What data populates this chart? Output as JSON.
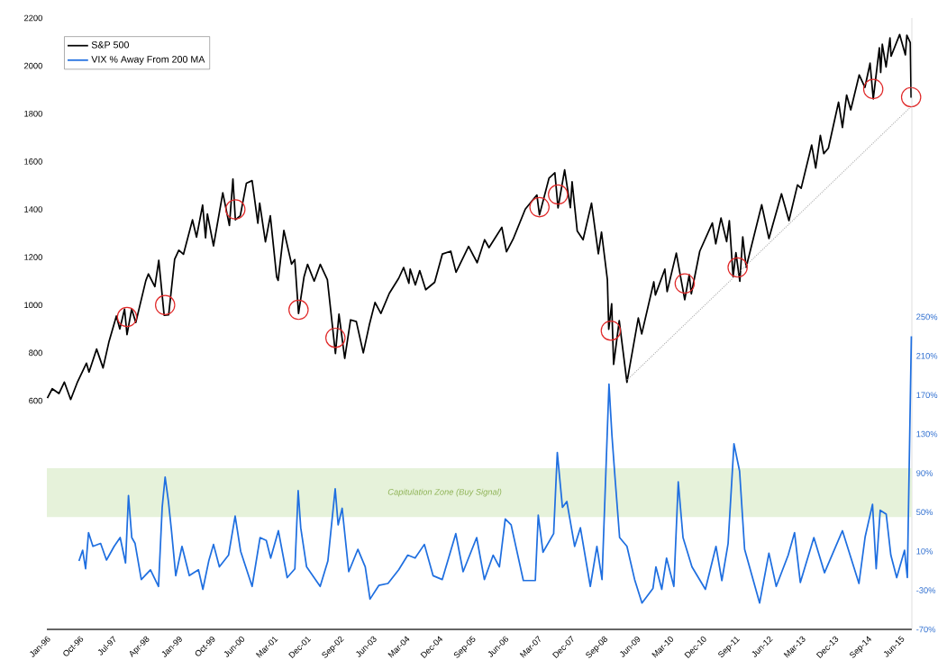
{
  "chart_data": {
    "type": "line",
    "xlim": [
      "1996-01",
      "2015-09"
    ],
    "xticks": [
      {
        "value": "1996-01",
        "label": "Jan-96"
      },
      {
        "value": "1996-10",
        "label": "Oct-96"
      },
      {
        "value": "1997-07",
        "label": "Jul-97"
      },
      {
        "value": "1998-04",
        "label": "Apr-98"
      },
      {
        "value": "1999-01",
        "label": "Jan-99"
      },
      {
        "value": "1999-10",
        "label": "Oct-99"
      },
      {
        "value": "2000-06",
        "label": "Jun-00"
      },
      {
        "value": "2001-03",
        "label": "Mar-01"
      },
      {
        "value": "2001-12",
        "label": "Dec-01"
      },
      {
        "value": "2002-09",
        "label": "Sep-02"
      },
      {
        "value": "2003-06",
        "label": "Jun-03"
      },
      {
        "value": "2004-03",
        "label": "Mar-04"
      },
      {
        "value": "2004-12",
        "label": "Dec-04"
      },
      {
        "value": "2005-09",
        "label": "Sep-05"
      },
      {
        "value": "2006-06",
        "label": "Jun-06"
      },
      {
        "value": "2007-03",
        "label": "Mar-07"
      },
      {
        "value": "2007-12",
        "label": "Dec-07"
      },
      {
        "value": "2008-09",
        "label": "Sep-08"
      },
      {
        "value": "2009-06",
        "label": "Jun-09"
      },
      {
        "value": "2010-03",
        "label": "Mar-10"
      },
      {
        "value": "2010-12",
        "label": "Dec-10"
      },
      {
        "value": "2011-09",
        "label": "Sep-11"
      },
      {
        "value": "2012-06",
        "label": "Jun-12"
      },
      {
        "value": "2013-03",
        "label": "Mar-13"
      },
      {
        "value": "2013-12",
        "label": "Dec-13"
      },
      {
        "value": "2014-09",
        "label": "Sep-14"
      },
      {
        "value": "2015-06",
        "label": "Jun-15"
      }
    ],
    "ylim": [
      -356,
      2200
    ],
    "yticks": [
      600,
      800,
      1000,
      1200,
      1400,
      1600,
      1800,
      2000,
      2200
    ],
    "y2lim": [
      -70,
      556
    ],
    "y2ticks": [
      {
        "value": 250,
        "label": "250%"
      },
      {
        "value": 210,
        "label": "210%"
      },
      {
        "value": 170,
        "label": "170%"
      },
      {
        "value": 130,
        "label": "130%"
      },
      {
        "value": 90,
        "label": "90%"
      },
      {
        "value": 50,
        "label": "50%"
      },
      {
        "value": 10,
        "label": "10%"
      },
      {
        "value": -30,
        "label": "-30%"
      },
      {
        "value": -70,
        "label": "-70%"
      }
    ],
    "legend": "top left",
    "bands": [
      {
        "axis": "y2",
        "from": 45,
        "to": 95,
        "label": "Capitulation Zone (Buy Signal)",
        "color": "#e6f2da"
      }
    ],
    "series": [
      {
        "name": "S&P 500",
        "color": "#000000",
        "x": [
          "1996-01-05",
          "1996-02-15",
          "1996-04-10",
          "1996-05-24",
          "1996-07-16",
          "1996-09-13",
          "1996-11-25",
          "1996-12-16",
          "1997-02-18",
          "1997-04-11",
          "1997-05-30",
          "1997-07-30",
          "1997-08-28",
          "1997-10-07",
          "1997-10-27",
          "1997-12-05",
          "1998-01-09",
          "1998-03-31",
          "1998-04-22",
          "1998-06-15",
          "1998-07-17",
          "1998-08-31",
          "1998-10-08",
          "1998-11-27",
          "1998-12-31",
          "1999-02-09",
          "1999-04-23",
          "1999-05-26",
          "1999-07-16",
          "1999-08-10",
          "1999-08-25",
          "1999-10-15",
          "1999-12-31",
          "2000-02-25",
          "2000-03-24",
          "2000-04-14",
          "2000-05-24",
          "2000-07-14",
          "2000-09-01",
          "2000-10-18",
          "2000-11-03",
          "2000-12-20",
          "2001-01-30",
          "2001-03-22",
          "2001-04-04",
          "2001-05-21",
          "2001-07-24",
          "2001-08-20",
          "2001-09-21",
          "2001-11-06",
          "2001-12-05",
          "2002-01-29",
          "2002-03-19",
          "2002-05-17",
          "2002-07-23",
          "2002-08-22",
          "2002-10-09",
          "2002-11-27",
          "2003-01-14",
          "2003-03-11",
          "2003-04-30",
          "2003-06-17",
          "2003-08-05",
          "2003-10-14",
          "2003-12-31",
          "2004-02-11",
          "2004-03-24",
          "2004-04-05",
          "2004-05-17",
          "2004-06-23",
          "2004-08-12",
          "2004-10-25",
          "2004-12-28",
          "2005-03-07",
          "2005-04-20",
          "2005-08-03",
          "2005-10-13",
          "2005-12-14",
          "2006-01-20",
          "2006-05-05",
          "2006-06-13",
          "2006-08-07",
          "2006-11-17",
          "2007-02-22",
          "2007-03-13",
          "2007-05-31",
          "2007-07-19",
          "2007-08-15",
          "2007-10-09",
          "2007-11-26",
          "2007-12-10",
          "2008-01-22",
          "2008-03-10",
          "2008-05-19",
          "2008-07-15",
          "2008-08-11",
          "2008-09-29",
          "2008-10-10",
          "2008-11-04",
          "2008-11-20",
          "2009-01-06",
          "2009-03-09",
          "2009-06-12",
          "2009-07-10",
          "2009-10-19",
          "2009-11-02",
          "2010-01-19",
          "2010-02-08",
          "2010-04-23",
          "2010-07-02",
          "2010-08-09",
          "2010-08-26",
          "2010-11-05",
          "2011-02-18",
          "2011-03-16",
          "2011-04-29",
          "2011-06-15",
          "2011-07-07",
          "2011-08-08",
          "2011-08-31",
          "2011-10-03",
          "2011-10-27",
          "2011-11-25",
          "2012-04-02",
          "2012-06-01",
          "2012-09-14",
          "2012-11-15",
          "2013-01-25",
          "2013-02-25",
          "2013-05-21",
          "2013-06-24",
          "2013-08-02",
          "2013-08-30",
          "2013-10-08",
          "2013-12-31",
          "2014-02-03",
          "2014-03-07",
          "2014-04-11",
          "2014-06-20",
          "2014-08-07",
          "2014-09-19",
          "2014-10-15",
          "2014-12-05",
          "2014-12-16",
          "2014-12-29",
          "2015-01-30",
          "2015-03-02",
          "2015-03-11",
          "2015-05-21",
          "2015-07-08",
          "2015-07-20",
          "2015-08-18",
          "2015-08-25"
        ],
        "values": [
          611,
          650,
          630,
          678,
          605,
          680,
          757,
          720,
          816,
          737,
          848,
          954,
          900,
          983,
          876,
          983,
          927,
          1102,
          1130,
          1077,
          1187,
          957,
          959,
          1192,
          1229,
          1212,
          1356,
          1284,
          1418,
          1281,
          1381,
          1247,
          1469,
          1333,
          1527,
          1356,
          1373,
          1509,
          1520,
          1342,
          1426,
          1264,
          1373,
          1117,
          1103,
          1312,
          1171,
          1190,
          965,
          1118,
          1170,
          1100,
          1170,
          1106,
          797,
          962,
          777,
          938,
          931,
          800,
          916,
          1011,
          965,
          1049,
          1112,
          1157,
          1091,
          1150,
          1084,
          1144,
          1064,
          1095,
          1213,
          1225,
          1137,
          1245,
          1177,
          1273,
          1240,
          1325,
          1223,
          1275,
          1401,
          1460,
          1377,
          1530,
          1553,
          1406,
          1565,
          1407,
          1515,
          1310,
          1273,
          1426,
          1214,
          1305,
          1106,
          899,
          1005,
          752,
          935,
          677,
          946,
          879,
          1097,
          1042,
          1150,
          1056,
          1217,
          1022,
          1127,
          1047,
          1225,
          1343,
          1256,
          1364,
          1265,
          1353,
          1119,
          1219,
          1099,
          1285,
          1158,
          1419,
          1278,
          1465,
          1353,
          1502,
          1488,
          1669,
          1573,
          1709,
          1633,
          1656,
          1848,
          1742,
          1878,
          1816,
          1962,
          1910,
          2011,
          1862,
          2075,
          1972,
          2090,
          1995,
          2117,
          2040,
          2131,
          2046,
          2128,
          2097,
          1867
        ]
      },
      {
        "name": "VIX % Away From 200 MA",
        "color": "#1f6fe0",
        "axis": "y2",
        "x": [
          "1996-09-24",
          "1996-10-24",
          "1996-11-18",
          "1996-12-12",
          "1997-01-18",
          "1997-03-21",
          "1997-05-09",
          "1997-07-12",
          "1997-09-01",
          "1997-10-15",
          "1997-11-09",
          "1997-12-06",
          "1998-01-03",
          "1998-02-24",
          "1998-05-09",
          "1998-07-15",
          "1998-08-15",
          "1998-09-09",
          "1998-10-06",
          "1998-11-01",
          "1998-12-06",
          "1999-01-27",
          "1999-03-27",
          "1999-06-12",
          "1999-07-18",
          "1999-09-06",
          "1999-10-15",
          "1999-12-03",
          "2000-02-18",
          "2000-04-12",
          "2000-05-27",
          "2000-09-01",
          "2000-11-06",
          "2000-12-27",
          "2001-02-03",
          "2001-04-06",
          "2001-06-18",
          "2001-08-21",
          "2001-09-18",
          "2001-10-09",
          "2001-11-27",
          "2002-03-18",
          "2002-05-21",
          "2002-07-21",
          "2002-08-15",
          "2002-09-18",
          "2002-11-12",
          "2003-01-27",
          "2003-03-27",
          "2003-05-06",
          "2003-07-18",
          "2003-10-03",
          "2004-01-01",
          "2004-03-15",
          "2004-05-15",
          "2004-08-01",
          "2004-10-12",
          "2004-12-27",
          "2005-04-18",
          "2005-06-18",
          "2005-10-09",
          "2005-12-12",
          "2006-02-24",
          "2006-04-15",
          "2006-06-03",
          "2006-07-21",
          "2006-11-01",
          "2007-02-09",
          "2007-03-03",
          "2007-04-12",
          "2007-07-09",
          "2007-08-09",
          "2007-09-21",
          "2007-10-27",
          "2008-01-01",
          "2008-02-18",
          "2008-05-09",
          "2008-07-03",
          "2008-08-15",
          "2008-10-12",
          "2008-11-06",
          "2008-12-01",
          "2009-01-09",
          "2009-03-09",
          "2009-05-12",
          "2009-07-12",
          "2009-10-12",
          "2009-11-06",
          "2009-12-24",
          "2010-02-03",
          "2010-04-03",
          "2010-05-09",
          "2010-06-18",
          "2010-09-01",
          "2010-12-21",
          "2011-03-18",
          "2011-05-06",
          "2011-06-27",
          "2011-08-15",
          "2011-10-01",
          "2011-11-12",
          "2012-03-15",
          "2012-06-01",
          "2012-08-01",
          "2012-11-09",
          "2013-01-01",
          "2013-02-18",
          "2013-06-09",
          "2013-09-06",
          "2014-02-03",
          "2014-06-18",
          "2014-08-09",
          "2014-10-09",
          "2014-11-09",
          "2014-12-12",
          "2015-02-01",
          "2015-03-09",
          "2015-04-27",
          "2015-07-01",
          "2015-07-24",
          "2015-08-27"
        ],
        "values": [
          0,
          11,
          -8,
          29,
          15,
          18,
          1,
          15,
          24,
          -2,
          67,
          24,
          18,
          -19,
          -9,
          -26,
          55,
          86,
          61,
          31,
          -15,
          15,
          -15,
          -9,
          -29,
          0,
          17,
          -6,
          6,
          46,
          10,
          -26,
          24,
          21,
          3,
          31,
          -17,
          -8,
          72,
          34,
          -6,
          -26,
          0,
          74,
          37,
          54,
          -11,
          12,
          -6,
          -39,
          -25,
          -23,
          -9,
          6,
          3,
          17,
          -15,
          -19,
          28,
          -11,
          24,
          -19,
          6,
          -6,
          43,
          37,
          -20,
          -20,
          47,
          9,
          28,
          111,
          55,
          61,
          15,
          34,
          -26,
          15,
          -19,
          181,
          129,
          86,
          24,
          15,
          -19,
          -43,
          -28,
          -6,
          -29,
          3,
          -26,
          81,
          24,
          -6,
          -29,
          15,
          -20,
          18,
          120,
          92,
          12,
          -43,
          8,
          -26,
          6,
          29,
          -22,
          24,
          -12,
          31,
          -23,
          25,
          58,
          -8,
          52,
          48,
          6,
          -17,
          11,
          -17,
          230
        ]
      },
      {
        "type": "scatter",
        "marker": "circle",
        "color": "#e02828",
        "x": [
          "1997-10-27",
          "1998-09-09",
          "2000-04-14",
          "2001-09-21",
          "2002-07-23",
          "2007-03-13",
          "2007-08-15",
          "2008-10-27",
          "2010-07-02",
          "2011-09-15",
          "2014-10-15",
          "2015-08-25"
        ],
        "values": [
          950,
          1000,
          1400,
          980,
          863,
          1409,
          1462,
          893,
          1090,
          1157,
          1903,
          1869
        ]
      },
      {
        "type": "line",
        "line_style": "dotted",
        "color": "#aaaaaa",
        "x": [
          "2009-03-09",
          "2015-08-25"
        ],
        "values": [
          686,
          1830
        ]
      }
    ]
  }
}
